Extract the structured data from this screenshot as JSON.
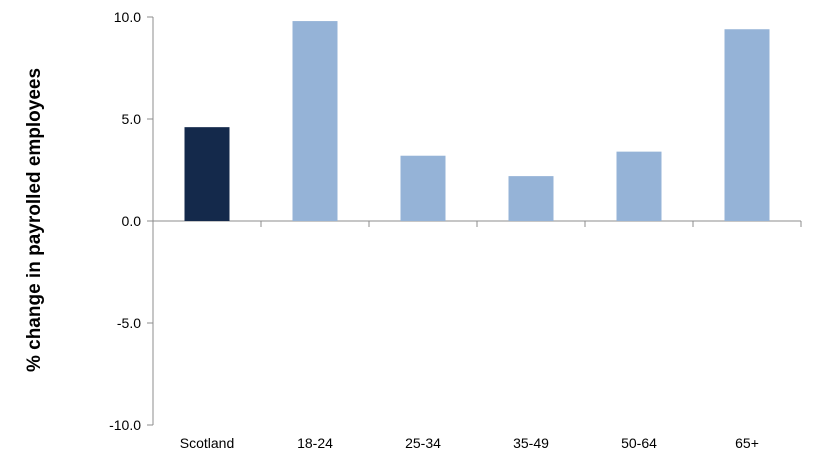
{
  "chart_data": {
    "type": "bar",
    "title": "",
    "xlabel": "",
    "ylabel": "% change in payrolled employees",
    "categories": [
      "Scotland",
      "18-24",
      "25-34",
      "35-49",
      "50-64",
      "65+"
    ],
    "values": [
      4.6,
      9.8,
      3.2,
      2.2,
      3.4,
      9.4
    ],
    "ylim": [
      -10,
      10
    ],
    "yticks": [
      -10,
      -5,
      0,
      5,
      10
    ],
    "ytick_labels": [
      "-10.0",
      "-5.0",
      "0.0",
      "5.0",
      "10.0"
    ],
    "grid": false,
    "legend": "none",
    "colors": {
      "Scotland": "#14294b",
      "age_groups": "#95b3d7"
    },
    "bar_colors": [
      "#14294b",
      "#95b3d7",
      "#95b3d7",
      "#95b3d7",
      "#95b3d7",
      "#95b3d7"
    ],
    "axis_color": "#8c8c8c",
    "text_color": "#000000"
  }
}
